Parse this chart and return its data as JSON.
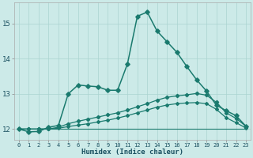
{
  "xlabel": "Humidex (Indice chaleur)",
  "background_color": "#cceae8",
  "grid_color": "#aad4d0",
  "line_color": "#1a7a6e",
  "tick_color": "#1a5060",
  "xlim": [
    -0.5,
    23.5
  ],
  "ylim": [
    11.7,
    15.6
  ],
  "yticks": [
    12,
    13,
    14,
    15
  ],
  "xticks": [
    0,
    1,
    2,
    3,
    4,
    5,
    6,
    7,
    8,
    9,
    10,
    11,
    12,
    13,
    14,
    15,
    16,
    17,
    18,
    19,
    20,
    21,
    22,
    23
  ],
  "lines": [
    {
      "x": [
        0,
        1,
        2,
        3,
        4,
        5,
        6,
        7,
        8,
        9,
        10,
        11,
        12,
        13,
        14,
        15,
        16,
        17,
        18,
        19,
        20,
        21,
        22,
        23
      ],
      "y": [
        12.0,
        11.92,
        11.93,
        12.05,
        12.1,
        13.0,
        13.25,
        13.22,
        13.2,
        13.1,
        13.1,
        13.85,
        15.2,
        15.32,
        14.78,
        14.48,
        14.18,
        13.78,
        13.4,
        13.08,
        12.68,
        12.52,
        12.38,
        12.08
      ],
      "marker": "D",
      "markersize": 2.8,
      "linewidth": 1.1
    },
    {
      "x": [
        0,
        1,
        2,
        3,
        4,
        5,
        6,
        7,
        8,
        9,
        10,
        11,
        12,
        13,
        14,
        15,
        16,
        17,
        18,
        19,
        20,
        21,
        22,
        23
      ],
      "y": [
        12.0,
        12.0,
        12.0,
        12.0,
        12.05,
        12.15,
        12.22,
        12.28,
        12.34,
        12.4,
        12.46,
        12.54,
        12.63,
        12.72,
        12.82,
        12.9,
        12.94,
        12.97,
        13.01,
        12.96,
        12.76,
        12.46,
        12.3,
        12.08
      ],
      "marker": "D",
      "markersize": 2.2,
      "linewidth": 0.9
    },
    {
      "x": [
        0,
        1,
        2,
        3,
        4,
        5,
        6,
        7,
        8,
        9,
        10,
        11,
        12,
        13,
        14,
        15,
        16,
        17,
        18,
        19,
        20,
        21,
        22,
        23
      ],
      "y": [
        12.0,
        12.0,
        12.0,
        12.0,
        12.02,
        12.07,
        12.11,
        12.15,
        12.2,
        12.25,
        12.31,
        12.38,
        12.46,
        12.54,
        12.62,
        12.68,
        12.72,
        12.74,
        12.75,
        12.72,
        12.56,
        12.32,
        12.18,
        12.03
      ],
      "marker": "D",
      "markersize": 2.0,
      "linewidth": 0.9
    },
    {
      "x": [
        0,
        1,
        2,
        3,
        4,
        5,
        6,
        7,
        8,
        9,
        10,
        11,
        12,
        13,
        14,
        15,
        16,
        17,
        18,
        19,
        20,
        21,
        22,
        23
      ],
      "y": [
        12.0,
        12.0,
        12.0,
        12.0,
        12.0,
        12.0,
        12.0,
        12.0,
        12.0,
        12.0,
        12.0,
        12.0,
        12.0,
        12.0,
        12.0,
        12.0,
        12.0,
        12.0,
        12.0,
        12.0,
        12.0,
        12.0,
        12.0,
        12.0
      ],
      "marker": null,
      "markersize": 0,
      "linewidth": 0.8
    }
  ]
}
